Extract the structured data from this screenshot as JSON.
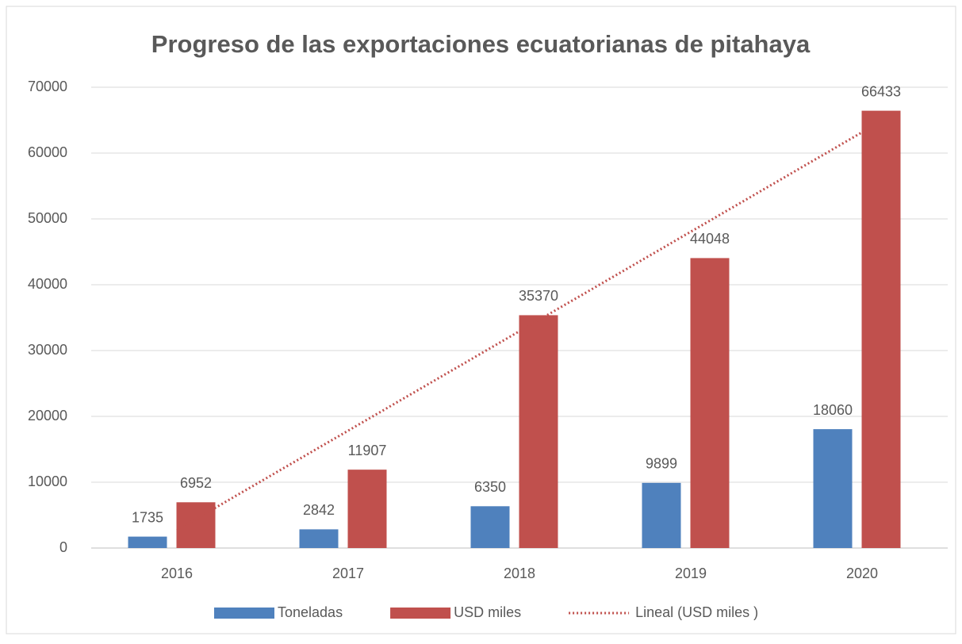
{
  "chart_data": {
    "type": "bar",
    "title": "Progreso de las exportaciones ecuatorianas de pitahaya",
    "categories": [
      "2016",
      "2017",
      "2018",
      "2019",
      "2020"
    ],
    "series": [
      {
        "name": "Toneladas",
        "color": "#4f81bd",
        "values": [
          1735,
          2842,
          6350,
          9899,
          18060
        ]
      },
      {
        "name": "USD miles",
        "color": "#c0504d",
        "values": [
          6952,
          11907,
          35370,
          44048,
          66433
        ],
        "trendline": {
          "type": "linear",
          "name": "Lineal (USD miles )",
          "color": "#c0504d"
        }
      }
    ],
    "ylim": [
      0,
      70000
    ],
    "yticks": [
      0,
      10000,
      20000,
      30000,
      40000,
      50000,
      60000,
      70000
    ],
    "grid": true,
    "legend": "bottom"
  }
}
